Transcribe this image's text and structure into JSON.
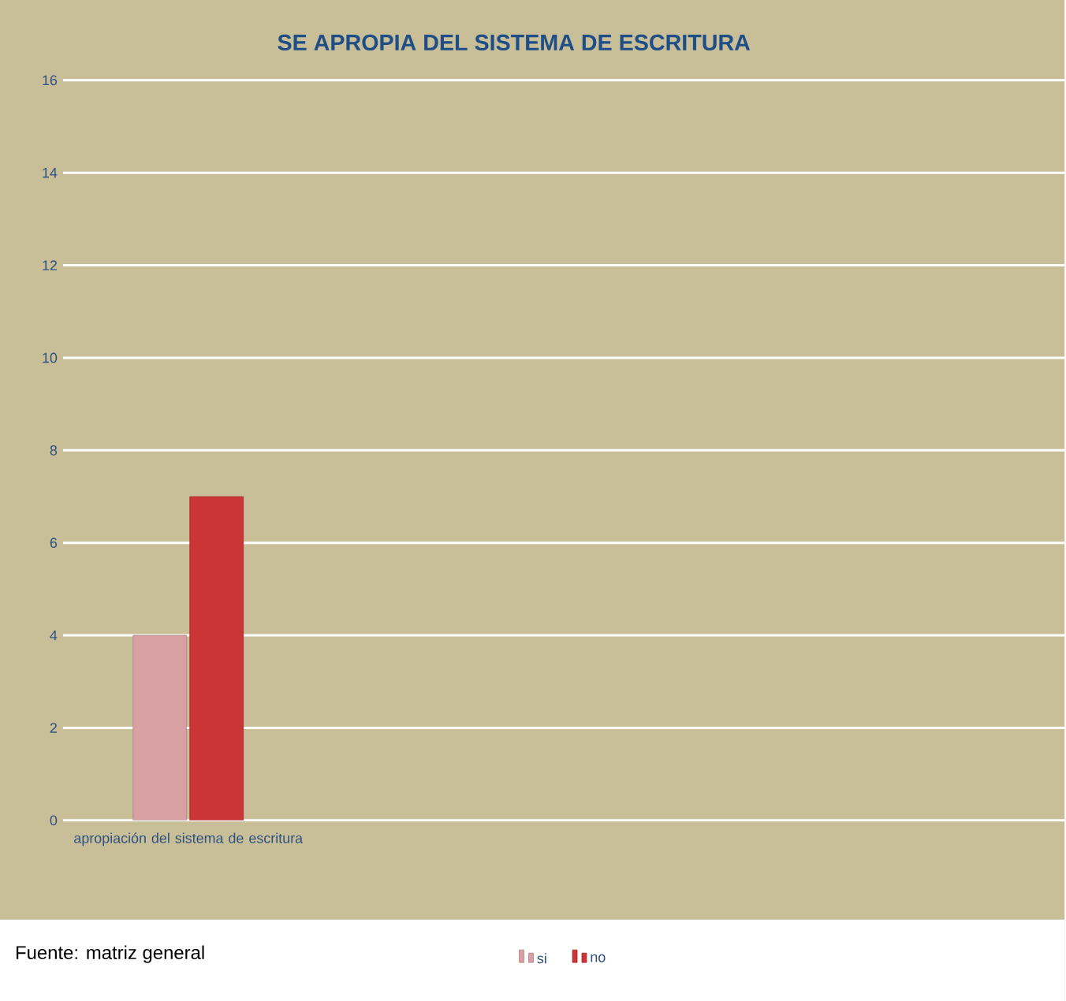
{
  "chart_data": {
    "type": "bar",
    "title": "SE APROPIA DEL SISTEMA DE ESCRITURA",
    "categories": [
      "apropiación del sistema de escritura"
    ],
    "series": [
      {
        "name": "si",
        "color": "#d9a0a4",
        "values": [
          4
        ]
      },
      {
        "name": "no",
        "color": "#cc3535",
        "values": [
          7
        ]
      }
    ],
    "ylim": [
      0,
      16
    ],
    "yticks": [
      0,
      2,
      4,
      6,
      8,
      10,
      12,
      14,
      16
    ],
    "grid": "y",
    "legend": "bottom",
    "annotations": [
      "Fuente: matriz general"
    ]
  }
}
